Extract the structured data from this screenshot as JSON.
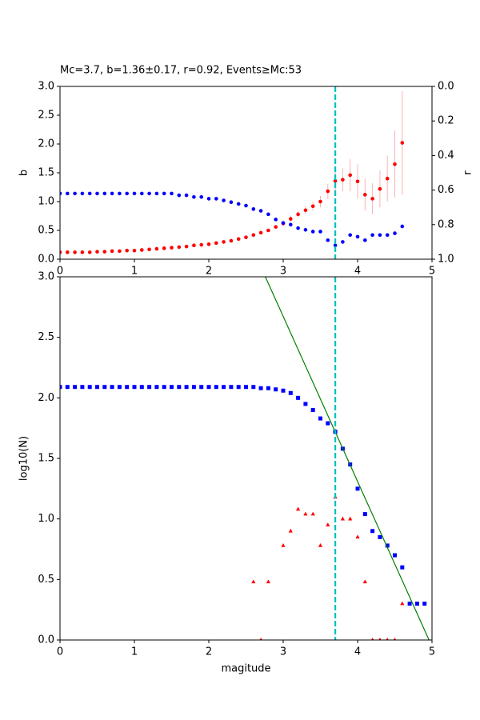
{
  "chart_data": [
    {
      "type": "scatter",
      "title": "Mc=3.7, b=1.36±0.17, r=0.92, Events≥Mc:53",
      "y_label": "b",
      "y2_label": "r",
      "x": [
        0,
        0.1,
        0.2,
        0.3,
        0.4,
        0.5,
        0.6,
        0.7,
        0.8,
        0.9,
        1.0,
        1.1,
        1.2,
        1.3,
        1.4,
        1.5,
        1.6,
        1.7,
        1.8,
        1.9,
        2.0,
        2.1,
        2.2,
        2.3,
        2.4,
        2.5,
        2.6,
        2.7,
        2.8,
        2.9,
        3.0,
        3.1,
        3.2,
        3.3,
        3.4,
        3.5,
        3.6,
        3.7,
        3.8,
        3.9,
        4.0,
        4.1,
        4.2,
        4.3,
        4.4,
        4.5,
        4.6
      ],
      "series": [
        {
          "color": "#ff0000",
          "marker": "o",
          "error_color": "#f8b4b4",
          "values": [
            0.12,
            0.12,
            0.12,
            0.12,
            0.12,
            0.13,
            0.13,
            0.14,
            0.14,
            0.15,
            0.15,
            0.16,
            0.17,
            0.18,
            0.19,
            0.2,
            0.21,
            0.22,
            0.24,
            0.25,
            0.26,
            0.28,
            0.3,
            0.32,
            0.35,
            0.38,
            0.42,
            0.46,
            0.5,
            0.56,
            0.62,
            0.7,
            0.78,
            0.85,
            0.92,
            1.0,
            1.18,
            1.36,
            1.38,
            1.46,
            1.35,
            1.12,
            1.05,
            1.22,
            1.4,
            1.65,
            2.02
          ],
          "errors": [
            0.01,
            0.01,
            0.01,
            0.01,
            0.01,
            0.01,
            0.01,
            0.01,
            0.01,
            0.01,
            0.01,
            0.01,
            0.01,
            0.01,
            0.01,
            0.01,
            0.01,
            0.01,
            0.01,
            0.01,
            0.02,
            0.02,
            0.02,
            0.02,
            0.02,
            0.02,
            0.02,
            0.02,
            0.02,
            0.02,
            0.04,
            0.05,
            0.06,
            0.07,
            0.08,
            0.1,
            0.13,
            0.17,
            0.2,
            0.28,
            0.3,
            0.28,
            0.27,
            0.32,
            0.4,
            0.58,
            0.9
          ]
        },
        {
          "color": "#0000ff",
          "marker": "o",
          "axis": "y2",
          "values": [
            0.62,
            0.62,
            0.62,
            0.62,
            0.62,
            0.62,
            0.62,
            0.62,
            0.62,
            0.62,
            0.62,
            0.62,
            0.62,
            0.62,
            0.62,
            0.62,
            0.63,
            0.63,
            0.64,
            0.64,
            0.65,
            0.65,
            0.66,
            0.67,
            0.68,
            0.69,
            0.71,
            0.72,
            0.74,
            0.77,
            0.79,
            0.8,
            0.82,
            0.83,
            0.84,
            0.84,
            0.89,
            0.92,
            0.9,
            0.86,
            0.87,
            0.89,
            0.86,
            0.86,
            0.86,
            0.85,
            0.81
          ]
        }
      ],
      "vline": 3.7,
      "vline_color": "#00bfbf",
      "xlim": [
        0,
        5
      ],
      "xticks": [
        0,
        1,
        2,
        3,
        4,
        5
      ],
      "ylim": [
        0,
        3
      ],
      "yticks": [
        {
          "value": 0,
          "label": "0.0"
        },
        0.5,
        {
          "value": 1,
          "label": "1.0"
        },
        1.5,
        {
          "value": 2,
          "label": "2.0"
        },
        2.5,
        {
          "value": 3,
          "label": "3.0"
        }
      ],
      "y2lim": [
        1,
        0
      ],
      "y2ticks": [
        {
          "value": 0,
          "label": "0.0"
        },
        0.2,
        0.4,
        0.6,
        0.8,
        {
          "value": 1,
          "label": "1.0"
        }
      ]
    },
    {
      "type": "scatter",
      "x_label": "magitude",
      "y_label": "log10(N)",
      "series": [
        {
          "color": "#0000ff",
          "marker": "s",
          "x": [
            0,
            0.1,
            0.2,
            0.3,
            0.4,
            0.5,
            0.6,
            0.7,
            0.8,
            0.9,
            1.0,
            1.1,
            1.2,
            1.3,
            1.4,
            1.5,
            1.6,
            1.7,
            1.8,
            1.9,
            2.0,
            2.1,
            2.2,
            2.3,
            2.4,
            2.5,
            2.6,
            2.7,
            2.8,
            2.9,
            3.0,
            3.1,
            3.2,
            3.3,
            3.4,
            3.5,
            3.6,
            3.7,
            3.8,
            3.9,
            4.0,
            4.1,
            4.2,
            4.3,
            4.4,
            4.5,
            4.6,
            4.7,
            4.8,
            4.9
          ],
          "values": [
            2.09,
            2.09,
            2.09,
            2.09,
            2.09,
            2.09,
            2.09,
            2.09,
            2.09,
            2.09,
            2.09,
            2.09,
            2.09,
            2.09,
            2.09,
            2.09,
            2.09,
            2.09,
            2.09,
            2.09,
            2.09,
            2.09,
            2.09,
            2.09,
            2.09,
            2.09,
            2.09,
            2.08,
            2.08,
            2.07,
            2.06,
            2.04,
            2.0,
            1.95,
            1.9,
            1.83,
            1.79,
            1.72,
            1.58,
            1.45,
            1.25,
            1.04,
            0.9,
            0.85,
            0.78,
            0.7,
            0.6,
            0.3,
            0.3,
            0.3
          ]
        },
        {
          "color": "#ff0000",
          "marker": "^",
          "x": [
            2.6,
            2.7,
            2.8,
            3.0,
            3.1,
            3.2,
            3.3,
            3.4,
            3.5,
            3.6,
            3.7,
            3.8,
            3.9,
            4.0,
            4.1,
            4.2,
            4.3,
            4.4,
            4.5,
            4.6
          ],
          "values": [
            0.48,
            0,
            0.48,
            0.78,
            0.9,
            1.08,
            1.04,
            1.04,
            0.78,
            0.95,
            1.18,
            1.0,
            1.0,
            0.85,
            0.48,
            0,
            0,
            0,
            0,
            0.3
          ]
        },
        {
          "color": "#008000",
          "marker": "line",
          "x": [
            2.76,
            4.96
          ],
          "values": [
            3,
            0
          ]
        }
      ],
      "vline": 3.7,
      "vline_color": "#00bfbf",
      "xlim": [
        0,
        5
      ],
      "xticks": [
        0,
        1,
        2,
        3,
        4,
        5
      ],
      "ylim": [
        0,
        3
      ],
      "yticks": [
        {
          "value": 0,
          "label": "0.0"
        },
        0.5,
        {
          "value": 1,
          "label": "1.0"
        },
        1.5,
        {
          "value": 2,
          "label": "2.0"
        },
        2.5,
        {
          "value": 3,
          "label": "3.0"
        }
      ]
    }
  ]
}
